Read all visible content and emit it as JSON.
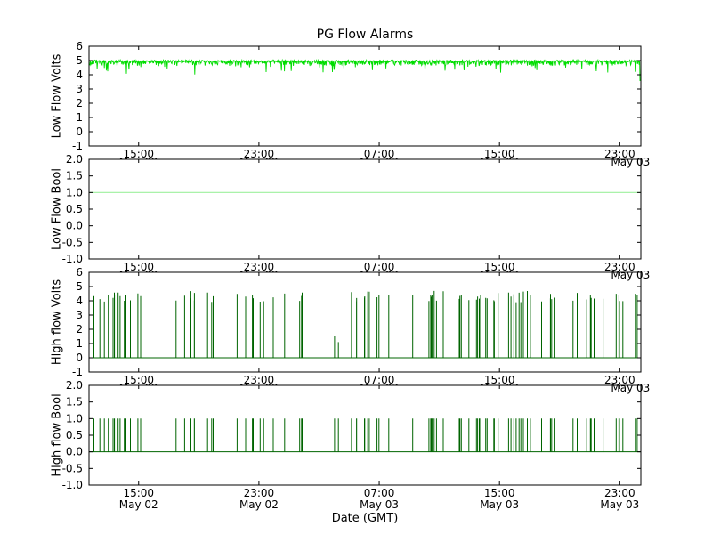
{
  "chart_data": {
    "type": "line",
    "title": "PG Flow Alarms",
    "xlabel": "Date (GMT)",
    "background": "#ffffff",
    "axis_color": "#000000",
    "text_color": "#000000",
    "legend": "none",
    "grid": false,
    "x_axis": {
      "start": 11.7,
      "end": 48.4,
      "unit": "hours since May 02 00:00 GMT",
      "ticks": [
        {
          "pos": 15,
          "time": "15:00",
          "date": "May 02"
        },
        {
          "pos": 23,
          "time": "23:00",
          "date": "May 02"
        },
        {
          "pos": 31,
          "time": "07:00",
          "date": "May 03"
        },
        {
          "pos": 39,
          "time": "15:00",
          "date": "May 03"
        },
        {
          "pos": 47,
          "time": "23:00",
          "date": "May 03"
        }
      ]
    },
    "subplots": [
      {
        "ylabel": "Low Flow Volts",
        "ymin": -1,
        "ymax": 6,
        "yticks": [
          {
            "v": 6,
            "l": "6"
          },
          {
            "v": 5,
            "l": "5"
          },
          {
            "v": 4,
            "l": "4"
          },
          {
            "v": 3,
            "l": "3"
          },
          {
            "v": 2,
            "l": "2"
          },
          {
            "v": 1,
            "l": "1"
          },
          {
            "v": 0,
            "l": "0"
          },
          {
            "v": -1,
            "l": "-1"
          }
        ],
        "series": {
          "type": "noisy_line",
          "color": "#00dd00",
          "baseline": 5.0,
          "typical_range": [
            4.2,
            5.0
          ],
          "end_dip": 3.5
        }
      },
      {
        "ylabel": "Low Flow Bool",
        "ymin": -1,
        "ymax": 2,
        "yticks": [
          {
            "v": 2,
            "l": "2.0"
          },
          {
            "v": 1.5,
            "l": "1.5"
          },
          {
            "v": 1,
            "l": "1.0"
          },
          {
            "v": 0.5,
            "l": "0.5"
          },
          {
            "v": 0,
            "l": "0.0"
          },
          {
            "v": -0.5,
            "l": "-0.5"
          },
          {
            "v": -1,
            "l": "-1.0"
          }
        ],
        "series": {
          "type": "flat_line",
          "color": "#9ef09e",
          "value": 1.0
        }
      },
      {
        "ylabel": "High flow Volts",
        "ymin": -1,
        "ymax": 6,
        "yticks": [
          {
            "v": 6,
            "l": "6"
          },
          {
            "v": 5,
            "l": "5"
          },
          {
            "v": 4,
            "l": "4"
          },
          {
            "v": 3,
            "l": "3"
          },
          {
            "v": 2,
            "l": "2"
          },
          {
            "v": 1,
            "l": "1"
          },
          {
            "v": 0,
            "l": "0"
          },
          {
            "v": -1,
            "l": "-1"
          }
        ],
        "series": {
          "type": "spikes",
          "color": "#006400",
          "baseline": 0.0,
          "height_range": [
            3.9,
            4.7
          ]
        }
      },
      {
        "ylabel": "High flow Bool",
        "ymin": -1,
        "ymax": 2,
        "yticks": [
          {
            "v": 2,
            "l": "2.0"
          },
          {
            "v": 1.5,
            "l": "1.5"
          },
          {
            "v": 1,
            "l": "1.0"
          },
          {
            "v": 0.5,
            "l": "0.5"
          },
          {
            "v": 0,
            "l": "0.0"
          },
          {
            "v": -0.5,
            "l": "-0.5"
          },
          {
            "v": -1,
            "l": "-1.0"
          }
        ],
        "series": {
          "type": "spikes",
          "color": "#006400",
          "baseline": 0.0,
          "height_range": [
            1.0,
            1.0
          ]
        }
      }
    ],
    "spikes": {
      "seed": 11,
      "clusters": [
        {
          "center": 0.055,
          "count": 16,
          "spread": 0.055
        },
        {
          "center": 0.17,
          "count": 6,
          "spread": 0.03
        },
        {
          "center": 0.225,
          "count": 3,
          "spread": 0.012
        },
        {
          "center": 0.3,
          "count": 7,
          "spread": 0.035
        },
        {
          "center": 0.355,
          "count": 1,
          "spread": 0.003
        },
        {
          "center": 0.39,
          "count": 3,
          "spread": 0.012
        },
        {
          "center": 0.515,
          "count": 11,
          "spread": 0.04
        },
        {
          "center": 0.615,
          "count": 8,
          "spread": 0.035
        },
        {
          "center": 0.695,
          "count": 10,
          "spread": 0.028
        },
        {
          "center": 0.765,
          "count": 12,
          "spread": 0.035
        },
        {
          "center": 0.84,
          "count": 6,
          "spread": 0.022
        },
        {
          "center": 0.905,
          "count": 8,
          "spread": 0.028
        },
        {
          "center": 0.975,
          "count": 7,
          "spread": 0.024
        }
      ],
      "short": [
        {
          "x": 0.445,
          "h": 1.5
        },
        {
          "x": 0.452,
          "h": 1.1
        }
      ]
    },
    "noise": {
      "seed": 5,
      "points": 1300
    }
  }
}
